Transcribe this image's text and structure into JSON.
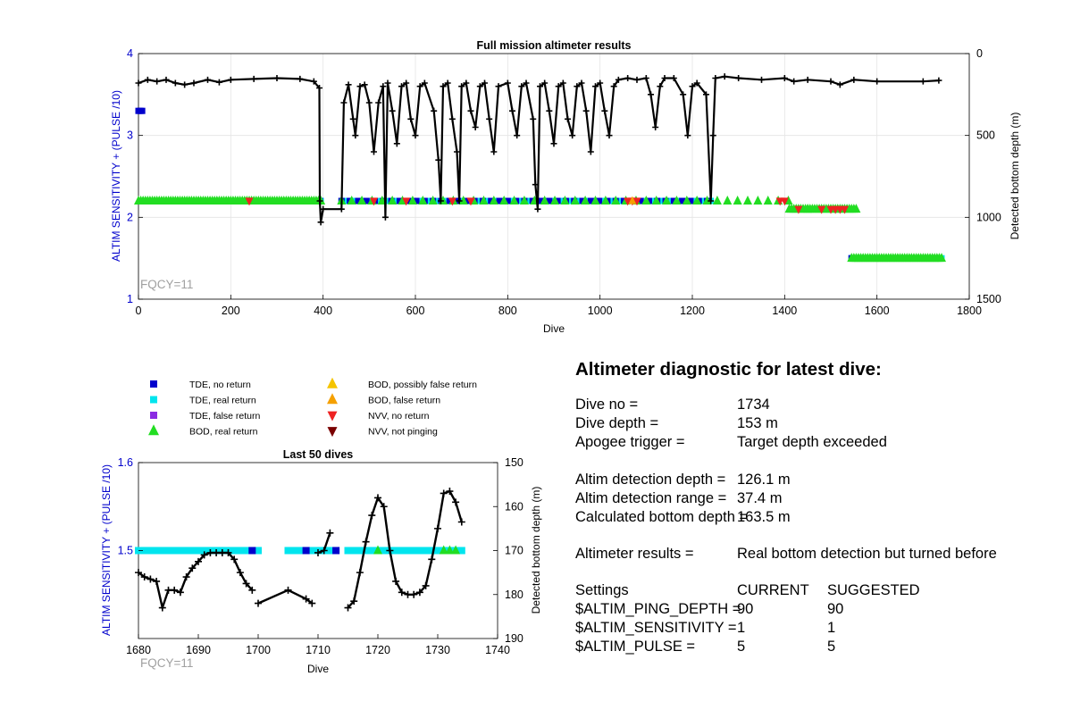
{
  "top_chart": {
    "title": "Full mission altimeter results",
    "xlabel": "Dive",
    "ylabel_left": "ALTIM SENSITIVITY + (PULSE /10)",
    "ylabel_right": "Detected bottom depth (m)",
    "annotation": "FQCY=11",
    "xticks": [
      "0",
      "200",
      "400",
      "600",
      "800",
      "1000",
      "1200",
      "1400",
      "1600",
      "1800"
    ],
    "yticks_left": [
      "1",
      "2",
      "3",
      "4"
    ],
    "yticks_right": [
      "0",
      "500",
      "1000",
      "1500"
    ]
  },
  "bottom_chart": {
    "title": "Last 50 dives",
    "xlabel": "Dive",
    "ylabel_left": "ALTIM SENSITIVITY + (PULSE /10)",
    "ylabel_right": "Detected bottom depth (m)",
    "annotation": "FQCY=11",
    "xticks": [
      "1680",
      "1690",
      "1700",
      "1710",
      "1720",
      "1730",
      "1740"
    ],
    "yticks_left": [
      "1.5",
      "1.6"
    ],
    "yticks_right": [
      "150",
      "160",
      "170",
      "180",
      "190"
    ]
  },
  "legend": [
    {
      "label": "TDE, no return",
      "marker": "square",
      "color": "#0000cc"
    },
    {
      "label": "TDE, real return",
      "marker": "square",
      "color": "#00e5ee"
    },
    {
      "label": "TDE, false return",
      "marker": "square",
      "color": "#8a2be2"
    },
    {
      "label": "BOD, real return",
      "marker": "triangle-up",
      "color": "#22dd22"
    },
    {
      "label": "BOD, possibly false return",
      "marker": "triangle-up",
      "color": "#f5c400"
    },
    {
      "label": "BOD, false return",
      "marker": "triangle-up",
      "color": "#f5a000"
    },
    {
      "label": "NVV, no return",
      "marker": "triangle-down",
      "color": "#ee2222"
    },
    {
      "label": "NVV, not pinging",
      "marker": "triangle-down",
      "color": "#7a0000"
    }
  ],
  "diagnostic": {
    "title": "Altimeter diagnostic for latest dive:",
    "dive_no_label": "Dive no =",
    "dive_no_value": "1734",
    "dive_depth_label": "Dive depth =",
    "dive_depth_value": "153 m",
    "apogee_label": "Apogee trigger =",
    "apogee_value": "Target depth exceeded",
    "detect_depth_label": "Altim detection depth =",
    "detect_depth_value": "126.1 m",
    "detect_range_label": "Altim detection range =",
    "detect_range_value": "37.4 m",
    "calc_bottom_label": "Calculated bottom depth =",
    "calc_bottom_value": "163.5 m",
    "results_label": "Altimeter results =",
    "results_value": "Real bottom detection but turned before",
    "settings_label": "Settings",
    "current_label": "CURRENT",
    "suggested_label": "SUGGESTED",
    "ping_depth_label": "$ALTIM_PING_DEPTH =",
    "ping_depth_current": "90",
    "ping_depth_suggested": "90",
    "sensitivity_label": "$ALTIM_SENSITIVITY =",
    "sensitivity_current": "1",
    "sensitivity_suggested": "1",
    "pulse_label": "$ALTIM_PULSE =",
    "pulse_current": "5",
    "pulse_suggested": "5"
  },
  "colors": {
    "axis_left": "#0000cc",
    "annotation": "#a0a0a0",
    "depth_line": "#000000",
    "tde_no_return": "#0000cc",
    "tde_real_return": "#00e5ee",
    "bod_real_return": "#22dd22",
    "nvv_no_return": "#ee2222",
    "bod_false_return": "#f5a000"
  },
  "chart_data": [
    {
      "type": "scatter",
      "title": "Full mission altimeter results",
      "xlabel": "Dive",
      "ylabel": "ALTIM SENSITIVITY + (PULSE /10)",
      "y2label": "Detected bottom depth (m)",
      "xlim": [
        0,
        1800
      ],
      "ylim": [
        1,
        4
      ],
      "y2lim": [
        0,
        1500
      ],
      "y2_reversed": true,
      "grid": true,
      "series": [
        {
          "name": "TDE, no return",
          "segments": [
            [
              0,
              10,
              3.3
            ],
            [
              375,
              395,
              2.2
            ],
            [
              440,
              1240,
              2.2
            ],
            [
              1545,
              1740,
              1.5
            ]
          ]
        },
        {
          "name": "TDE, real return",
          "segments": [
            [
              375,
              395,
              2.2
            ],
            [
              440,
              1240,
              2.2
            ],
            [
              1545,
              1740,
              1.5
            ]
          ]
        },
        {
          "name": "BOD, real return",
          "segments": [
            [
              0,
              395,
              2.2
            ],
            [
              440,
              1410,
              2.2
            ],
            [
              1410,
              1450,
              2.1
            ],
            [
              1450,
              1555,
              2.1
            ],
            [
              1545,
              1740,
              1.5
            ]
          ]
        },
        {
          "name": "NVV, no return",
          "points": [
            [
              240,
              2.2
            ],
            [
              510,
              2.2
            ],
            [
              580,
              2.2
            ],
            [
              680,
              2.2
            ],
            [
              720,
              2.2
            ],
            [
              1060,
              2.2
            ],
            [
              1070,
              2.2
            ],
            [
              1080,
              2.2
            ],
            [
              1390,
              2.2
            ],
            [
              1400,
              2.2
            ],
            [
              1430,
              2.1
            ],
            [
              1480,
              2.1
            ],
            [
              1500,
              2.1
            ],
            [
              1510,
              2.1
            ],
            [
              1520,
              2.1
            ],
            [
              1530,
              2.1
            ]
          ]
        },
        {
          "name": "BOD, false return",
          "points": [
            [
              1070,
              2.2
            ]
          ]
        },
        {
          "name": "Detected bottom depth",
          "axis": "right",
          "points": [
            [
              0,
              180
            ],
            [
              20,
              160
            ],
            [
              40,
              170
            ],
            [
              60,
              160
            ],
            [
              80,
              180
            ],
            [
              100,
              190
            ],
            [
              120,
              180
            ],
            [
              150,
              160
            ],
            [
              175,
              175
            ],
            [
              200,
              160
            ],
            [
              250,
              155
            ],
            [
              300,
              150
            ],
            [
              350,
              155
            ],
            [
              380,
              170
            ],
            [
              392,
              210
            ],
            [
              393,
              900
            ],
            [
              395,
              1030
            ],
            [
              400,
              950
            ],
            [
              440,
              950
            ],
            [
              445,
              300
            ],
            [
              455,
              190
            ],
            [
              465,
              400
            ],
            [
              470,
              500
            ],
            [
              480,
              200
            ],
            [
              490,
              190
            ],
            [
              500,
              300
            ],
            [
              510,
              600
            ],
            [
              520,
              300
            ],
            [
              530,
              200
            ],
            [
              535,
              1000
            ],
            [
              540,
              180
            ],
            [
              550,
              350
            ],
            [
              560,
              550
            ],
            [
              570,
              200
            ],
            [
              580,
              180
            ],
            [
              590,
              400
            ],
            [
              600,
              500
            ],
            [
              610,
              200
            ],
            [
              620,
              180
            ],
            [
              640,
              350
            ],
            [
              650,
              650
            ],
            [
              655,
              900
            ],
            [
              660,
              200
            ],
            [
              670,
              180
            ],
            [
              680,
              400
            ],
            [
              690,
              600
            ],
            [
              695,
              900
            ],
            [
              700,
              200
            ],
            [
              710,
              180
            ],
            [
              720,
              350
            ],
            [
              730,
              450
            ],
            [
              740,
              200
            ],
            [
              750,
              180
            ],
            [
              760,
              400
            ],
            [
              770,
              600
            ],
            [
              780,
              200
            ],
            [
              800,
              180
            ],
            [
              810,
              350
            ],
            [
              820,
              500
            ],
            [
              830,
              200
            ],
            [
              840,
              180
            ],
            [
              855,
              400
            ],
            [
              860,
              800
            ],
            [
              865,
              950
            ],
            [
              870,
              200
            ],
            [
              880,
              180
            ],
            [
              890,
              350
            ],
            [
              900,
              550
            ],
            [
              910,
              200
            ],
            [
              920,
              180
            ],
            [
              930,
              400
            ],
            [
              940,
              500
            ],
            [
              950,
              200
            ],
            [
              960,
              180
            ],
            [
              970,
              350
            ],
            [
              980,
              600
            ],
            [
              990,
              200
            ],
            [
              1000,
              180
            ],
            [
              1010,
              350
            ],
            [
              1020,
              500
            ],
            [
              1030,
              200
            ],
            [
              1040,
              160
            ],
            [
              1060,
              150
            ],
            [
              1080,
              160
            ],
            [
              1100,
              150
            ],
            [
              1110,
              250
            ],
            [
              1120,
              450
            ],
            [
              1130,
              200
            ],
            [
              1140,
              150
            ],
            [
              1160,
              150
            ],
            [
              1180,
              250
            ],
            [
              1190,
              500
            ],
            [
              1200,
              200
            ],
            [
              1210,
              180
            ],
            [
              1230,
              250
            ],
            [
              1240,
              900
            ],
            [
              1245,
              500
            ],
            [
              1250,
              150
            ],
            [
              1270,
              140
            ],
            [
              1300,
              150
            ],
            [
              1350,
              160
            ],
            [
              1400,
              150
            ],
            [
              1420,
              170
            ],
            [
              1450,
              160
            ],
            [
              1500,
              170
            ],
            [
              1520,
              190
            ],
            [
              1550,
              160
            ],
            [
              1600,
              170
            ],
            [
              1700,
              170
            ],
            [
              1734,
              164
            ]
          ]
        }
      ]
    },
    {
      "type": "scatter",
      "title": "Last 50 dives",
      "xlabel": "Dive",
      "ylabel": "ALTIM SENSITIVITY + (PULSE /10)",
      "y2label": "Detected bottom depth (m)",
      "xlim": [
        1680,
        1740
      ],
      "ylim": [
        1.4,
        1.6
      ],
      "y2lim": [
        150,
        190
      ],
      "y2_reversed": true,
      "grid": false,
      "series": [
        {
          "name": "TDE, real return",
          "segments": [
            [
              1680,
              1700,
              1.5
            ],
            [
              1705,
              1713,
              1.5
            ],
            [
              1715,
              1734,
              1.5
            ]
          ]
        },
        {
          "name": "TDE, no return",
          "points": [
            [
              1699,
              1.5
            ],
            [
              1708,
              1.5
            ],
            [
              1713,
              1.5
            ]
          ]
        },
        {
          "name": "BOD, real return",
          "points": [
            [
              1720,
              1.5
            ],
            [
              1731,
              1.5
            ],
            [
              1732,
              1.5
            ],
            [
              1733,
              1.5
            ]
          ]
        },
        {
          "name": "Detected bottom depth",
          "axis": "right",
          "segments_points": [
            [
              [
                1680,
                175
              ],
              [
                1681,
                176
              ],
              [
                1682,
                176.5
              ],
              [
                1683,
                177
              ],
              [
                1684,
                183
              ],
              [
                1685,
                179
              ],
              [
                1686,
                179
              ],
              [
                1687,
                179.5
              ],
              [
                1688,
                176
              ],
              [
                1689,
                174
              ],
              [
                1690,
                172.5
              ],
              [
                1691,
                171
              ],
              [
                1692,
                170.5
              ],
              [
                1693,
                170.5
              ],
              [
                1694,
                170.5
              ],
              [
                1695,
                170.5
              ],
              [
                1696,
                172
              ],
              [
                1697,
                175
              ],
              [
                1698,
                177.5
              ],
              [
                1699,
                179
              ]
            ],
            [
              [
                1700,
                182
              ],
              [
                1705,
                179
              ],
              [
                1708,
                181
              ],
              [
                1709,
                182
              ]
            ],
            [
              [
                1710,
                170.5
              ],
              [
                1711,
                170
              ],
              [
                1712,
                166
              ]
            ],
            [
              [
                1715,
                183
              ],
              [
                1716,
                181.5
              ],
              [
                1717,
                175
              ],
              [
                1718,
                168
              ],
              [
                1719,
                162
              ],
              [
                1720,
                158
              ],
              [
                1721,
                160
              ],
              [
                1722,
                170
              ],
              [
                1723,
                177
              ],
              [
                1724,
                179.5
              ],
              [
                1725,
                180
              ],
              [
                1726,
                180
              ],
              [
                1727,
                179.5
              ],
              [
                1728,
                178
              ],
              [
                1729,
                172
              ],
              [
                1730,
                165
              ],
              [
                1731,
                157
              ],
              [
                1732,
                156.5
              ],
              [
                1733,
                159
              ],
              [
                1734,
                163.5
              ]
            ]
          ]
        }
      ]
    }
  ]
}
